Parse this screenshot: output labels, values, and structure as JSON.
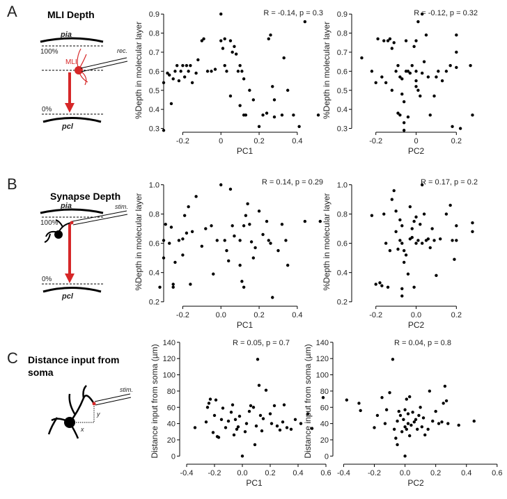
{
  "diagrams": [
    {
      "letter": "A",
      "title": "MLI Depth",
      "top_label": "pia",
      "top_percent": "100%",
      "cell": "MLI",
      "probe": "rec.",
      "bottom_percent": "0%",
      "bottom_label": "pcl"
    },
    {
      "letter": "B",
      "title": "Synapse Depth",
      "top_label": "pia",
      "top_percent": "100%",
      "probe": "stim.",
      "bottom_percent": "0%",
      "bottom_label": "pcl"
    },
    {
      "letter": "C",
      "title_lines": [
        "Distance input from",
        "soma"
      ],
      "probe": "stim.",
      "x_mark": "x",
      "y_mark": "y"
    }
  ],
  "chart_data": [
    {
      "type": "scatter",
      "annotation": "R = -0.14, p = 0.3",
      "x_label": "PC1",
      "y_label": "%Depth in molecular layer",
      "color": "#000000",
      "x": [
        -0.3,
        -0.3,
        -0.28,
        -0.27,
        -0.26,
        -0.25,
        -0.24,
        -0.23,
        -0.22,
        -0.21,
        -0.2,
        -0.19,
        -0.18,
        -0.17,
        -0.16,
        -0.15,
        -0.13,
        -0.12,
        -0.1,
        -0.09,
        -0.07,
        -0.05,
        -0.03,
        0,
        0,
        0.01,
        0.02,
        0.02,
        0.03,
        0.05,
        0.05,
        0.06,
        0.07,
        0.08,
        0.09,
        0.1,
        0.1,
        0.11,
        0.12,
        0.12,
        0.13,
        0.15,
        0.17,
        0.2,
        0.22,
        0.24,
        0.25,
        0.26,
        0.27,
        0.28,
        0.28,
        0.32,
        0.33,
        0.35,
        0.38,
        0.41,
        0.44,
        0.51
      ],
      "values": [
        0.29,
        0.54,
        0.59,
        0.58,
        0.43,
        0.56,
        0.6,
        0.63,
        0.55,
        0.6,
        0.63,
        0.57,
        0.63,
        0.6,
        0.63,
        0.54,
        0.59,
        0.66,
        0.76,
        0.77,
        0.6,
        0.6,
        0.61,
        0.9,
        0.76,
        0.72,
        0.77,
        0.63,
        0.6,
        0.76,
        0.47,
        0.7,
        0.73,
        0.69,
        0.6,
        0.63,
        0.42,
        0.6,
        0.56,
        0.37,
        0.37,
        0.5,
        0.45,
        0.31,
        0.37,
        0.38,
        0.77,
        0.79,
        0.52,
        0.45,
        0.36,
        0.37,
        0.67,
        0.5,
        0.37,
        0.31,
        0.86,
        0.37
      ],
      "xlim": [
        -0.3,
        0.55
      ],
      "ylim": [
        0.28,
        0.93
      ],
      "xticks": [
        -0.2,
        0,
        0.2,
        0.4
      ],
      "yticks": [
        0.3,
        0.4,
        0.5,
        0.6,
        0.7,
        0.8,
        0.9
      ]
    },
    {
      "type": "scatter",
      "annotation": "R = -0.12, p = 0.32",
      "x_label": "PC2",
      "y_label": "%Depth in molecular layer",
      "color": "#000000",
      "x": [
        -0.27,
        -0.22,
        -0.2,
        -0.19,
        -0.17,
        -0.16,
        -0.15,
        -0.14,
        -0.13,
        -0.12,
        -0.12,
        -0.11,
        -0.1,
        -0.09,
        -0.09,
        -0.08,
        -0.08,
        -0.07,
        -0.07,
        -0.06,
        -0.06,
        -0.06,
        -0.05,
        -0.05,
        -0.04,
        -0.04,
        -0.03,
        -0.02,
        -0.01,
        0,
        0,
        0,
        0,
        0.01,
        0.01,
        0.02,
        0.03,
        0.03,
        0.04,
        0.05,
        0.06,
        0.07,
        0.09,
        0.1,
        0.11,
        0.13,
        0.15,
        0.17,
        0.18,
        0.2,
        0.2,
        0.22,
        0.27,
        0.28,
        0.2
      ],
      "values": [
        0.67,
        0.6,
        0.54,
        0.77,
        0.57,
        0.76,
        0.54,
        0.76,
        0.77,
        0.5,
        0.72,
        0.75,
        0.6,
        0.63,
        0.38,
        0.57,
        0.37,
        0.56,
        0.48,
        0.44,
        0.33,
        0.29,
        0.76,
        0.6,
        0.6,
        0.36,
        0.59,
        0.63,
        0.73,
        0.76,
        0.6,
        0.55,
        0.52,
        0.86,
        0.5,
        0.47,
        0.9,
        0.59,
        0.65,
        0.79,
        0.57,
        0.37,
        0.47,
        0.57,
        0.6,
        0.55,
        0.6,
        0.63,
        0.31,
        0.79,
        0.62,
        0.3,
        0.63,
        0.37,
        0.7
      ],
      "xlim": [
        -0.32,
        0.32
      ],
      "ylim": [
        0.28,
        0.93
      ],
      "xticks": [
        -0.2,
        0,
        0.2
      ],
      "yticks": [
        0.3,
        0.4,
        0.5,
        0.6,
        0.7,
        0.8,
        0.9
      ]
    },
    {
      "type": "scatter",
      "annotation": "R = 0.14, p = 0.29",
      "x_label": "PC1",
      "y_label": "%Depth in molecular layer",
      "color": "#000000",
      "x": [
        -0.32,
        -0.3,
        -0.3,
        -0.29,
        -0.27,
        -0.26,
        -0.25,
        -0.25,
        -0.24,
        -0.22,
        -0.2,
        -0.2,
        -0.19,
        -0.18,
        -0.17,
        -0.16,
        -0.15,
        -0.13,
        -0.1,
        -0.08,
        -0.05,
        -0.04,
        -0.02,
        0,
        0.02,
        0.03,
        0.04,
        0.05,
        0.06,
        0.07,
        0.1,
        0.1,
        0.11,
        0.12,
        0.12,
        0.13,
        0.14,
        0.15,
        0.16,
        0.17,
        0.18,
        0.2,
        0.22,
        0.24,
        0.25,
        0.26,
        0.27,
        0.3,
        0.32,
        0.34,
        0.35,
        0.44,
        0.52
      ],
      "values": [
        0.3,
        0.62,
        0.5,
        0.73,
        0.6,
        0.71,
        0.3,
        0.32,
        0.47,
        0.62,
        0.63,
        0.52,
        0.79,
        0.67,
        0.85,
        0.32,
        0.68,
        0.92,
        0.58,
        0.7,
        0.72,
        0.39,
        0.62,
        1.0,
        0.62,
        0.55,
        0.48,
        0.97,
        0.72,
        0.65,
        0.62,
        0.45,
        0.34,
        0.3,
        0.72,
        0.79,
        0.87,
        0.73,
        0.61,
        0.5,
        0.57,
        0.82,
        0.66,
        0.75,
        0.62,
        0.6,
        0.23,
        0.55,
        0.73,
        0.62,
        0.45,
        0.75,
        0.75
      ],
      "xlim": [
        -0.3,
        0.55
      ],
      "ylim": [
        0.17,
        1.05
      ],
      "xticks": [
        -0.2,
        {
          "value": 0,
          "label": "0.0"
        },
        0.2,
        0.4
      ],
      "yticks": [
        0.2,
        0.4,
        0.6,
        0.8,
        {
          "value": 1,
          "label": "1.0"
        }
      ]
    },
    {
      "type": "scatter",
      "annotation": "R = 0.17, p = 0.2",
      "x_label": "PC2",
      "y_label": "%Depth in molecular layer",
      "color": "#000000",
      "x": [
        -0.22,
        -0.2,
        -0.18,
        -0.17,
        -0.16,
        -0.15,
        -0.14,
        -0.13,
        -0.12,
        -0.11,
        -0.1,
        -0.1,
        -0.09,
        -0.08,
        -0.08,
        -0.07,
        -0.07,
        -0.07,
        -0.07,
        -0.06,
        -0.06,
        -0.05,
        -0.04,
        -0.03,
        -0.03,
        -0.02,
        -0.02,
        -0.01,
        -0.01,
        0,
        0,
        0.01,
        0.02,
        0.03,
        0.03,
        0.04,
        0.05,
        0.06,
        0.07,
        0.08,
        0.09,
        0.1,
        0.12,
        0.15,
        0.17,
        0.18,
        0.19,
        0.2,
        0.2,
        0.28,
        0.28
      ],
      "values": [
        0.79,
        0.32,
        0.33,
        0.31,
        0.8,
        0.6,
        0.3,
        0.55,
        0.9,
        0.96,
        0.82,
        0.68,
        0.56,
        0.62,
        0.76,
        0.72,
        0.6,
        0.29,
        0.24,
        0.55,
        0.47,
        0.52,
        0.39,
        0.63,
        0.85,
        0.64,
        0.7,
        0.75,
        0.3,
        0.78,
        0.6,
        0.62,
        0.73,
        1.0,
        0.6,
        0.8,
        0.62,
        0.63,
        0.57,
        0.7,
        0.62,
        0.38,
        0.63,
        0.8,
        0.86,
        0.62,
        0.49,
        0.62,
        0.72,
        0.68,
        0.74
      ],
      "xlim": [
        -0.32,
        0.32
      ],
      "ylim": [
        0.17,
        1.05
      ],
      "xticks": [
        -0.2,
        {
          "value": 0,
          "label": "0.0"
        },
        0.2
      ],
      "yticks": [
        0.2,
        0.4,
        0.6,
        0.8,
        {
          "value": 1,
          "label": "1.0"
        }
      ]
    },
    {
      "type": "scatter",
      "annotation": "R = 0.05, p = 0.7",
      "x_label": "PC1",
      "y_label": "Distance input from soma (µm)",
      "color": "#000000",
      "x": [
        -0.34,
        -0.26,
        -0.25,
        -0.24,
        -0.23,
        -0.21,
        -0.2,
        -0.19,
        -0.18,
        -0.17,
        -0.15,
        -0.14,
        -0.12,
        -0.1,
        -0.08,
        -0.07,
        -0.06,
        -0.05,
        -0.04,
        -0.03,
        -0.02,
        0,
        0.02,
        0.03,
        0.05,
        0.06,
        0.08,
        0.09,
        0.1,
        0.11,
        0.12,
        0.13,
        0.14,
        0.15,
        0.17,
        0.2,
        0.21,
        0.23,
        0.25,
        0.27,
        0.29,
        0.3,
        0.32,
        0.35,
        0.38,
        0.42,
        0.47,
        0.5,
        0.58
      ],
      "values": [
        35,
        42,
        60,
        65,
        70,
        29,
        50,
        69,
        24,
        23,
        45,
        59,
        35,
        43,
        54,
        63,
        26,
        45,
        33,
        36,
        49,
        0,
        30,
        40,
        55,
        62,
        60,
        14,
        37,
        119,
        87,
        50,
        31,
        46,
        81,
        52,
        40,
        62,
        37,
        32,
        42,
        63,
        35,
        33,
        45,
        40,
        52,
        34,
        72
      ],
      "xlim": [
        -0.45,
        0.62
      ],
      "ylim": [
        -10,
        145
      ],
      "xticks": [
        -0.4,
        -0.2,
        {
          "value": 0,
          "label": "0.0"
        },
        0.2,
        0.4,
        0.6
      ],
      "yticks": [
        0,
        20,
        40,
        60,
        80,
        100,
        120,
        140
      ]
    },
    {
      "type": "scatter",
      "annotation": "R = 0.04, p = 0.8",
      "x_label": "PC2",
      "y_label": "Distance input from soma (µm)",
      "color": "#000000",
      "x": [
        -0.38,
        -0.3,
        -0.29,
        -0.2,
        -0.18,
        -0.15,
        -0.13,
        -0.12,
        -0.1,
        -0.08,
        -0.07,
        -0.06,
        -0.05,
        -0.05,
        -0.04,
        -0.03,
        -0.02,
        -0.01,
        0,
        0,
        0,
        0.01,
        0.01,
        0.02,
        0.02,
        0.03,
        0.03,
        0.04,
        0.05,
        0.06,
        0.07,
        0.08,
        0.09,
        0.1,
        0.11,
        0.12,
        0.13,
        0.15,
        0.16,
        0.18,
        0.2,
        0.22,
        0.24,
        0.25,
        0.26,
        0.27,
        0.28,
        0.35,
        0.45
      ],
      "values": [
        69,
        65,
        56,
        35,
        50,
        72,
        40,
        57,
        78,
        119,
        33,
        22,
        14,
        43,
        55,
        50,
        30,
        45,
        0,
        57,
        36,
        70,
        33,
        52,
        40,
        73,
        25,
        38,
        54,
        42,
        45,
        33,
        50,
        60,
        36,
        47,
        26,
        33,
        80,
        43,
        55,
        40,
        42,
        65,
        86,
        68,
        40,
        38,
        43
      ],
      "xlim": [
        -0.47,
        0.61
      ],
      "ylim": [
        -10,
        145
      ],
      "xticks": [
        -0.4,
        -0.2,
        {
          "value": 0,
          "label": "0.0"
        },
        0.2,
        0.4,
        0.6
      ],
      "yticks": [
        0,
        20,
        40,
        60,
        80,
        100,
        120,
        140
      ]
    }
  ]
}
